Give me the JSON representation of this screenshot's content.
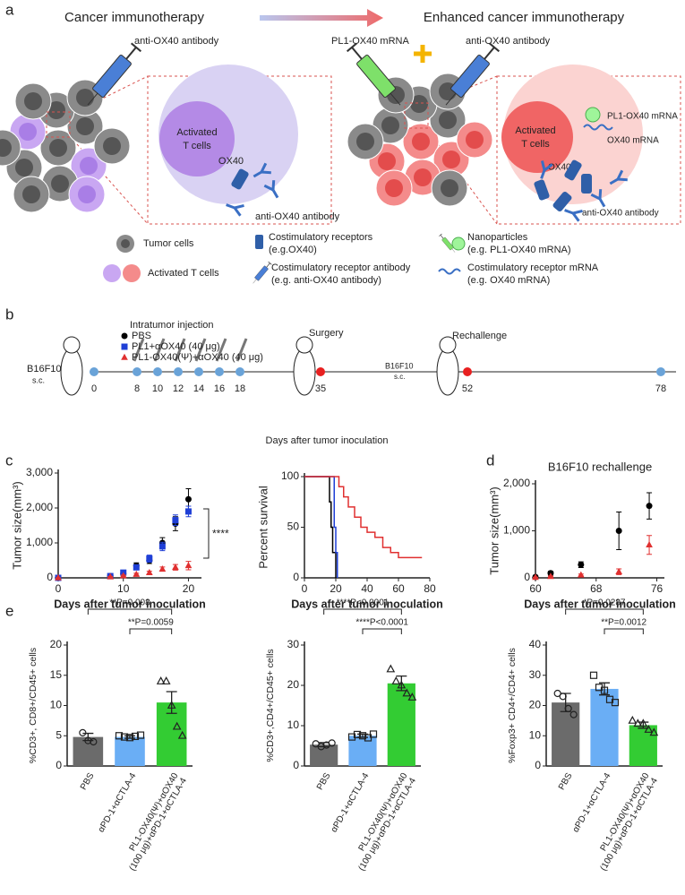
{
  "panel_labels": [
    "a",
    "b",
    "c",
    "d",
    "e"
  ],
  "diagram": {
    "left_title": "Cancer immunotherapy",
    "right_title": "Enhanced cancer immunotherapy",
    "left_syringe": "anti-OX40 antibody",
    "right_syringe_1": "PL1-OX40 mRNA",
    "right_syringe_2": "anti-OX40 antibody",
    "left_box": {
      "cell": [
        "Activated",
        "T cells"
      ],
      "receptor": "OX40",
      "antibody": "anti-OX40 antibody"
    },
    "right_box": {
      "cell": [
        "Activated",
        "T cells"
      ],
      "nanoparticle": "PL1-OX40 mRNA",
      "mrna": "OX40 mRNA",
      "receptor": "OX40",
      "antibody": "anti-OX40 antibody"
    },
    "legend": {
      "tumor": "Tumor cells",
      "tcell": "Activated T cells",
      "receptor": [
        "Costimulatory receptors",
        "(e.g.OX40)"
      ],
      "antibody": [
        "Costimulatory receptor antibody",
        "(e.g. anti-OX40 antibody)"
      ],
      "nanoparticle": [
        "Nanoparticles",
        "(e.g. PL1-OX40 mRNA)"
      ],
      "mrna": [
        "Costimulatory receptor mRNA",
        "(e.g. OX40 mRNA)"
      ]
    }
  },
  "timeline": {
    "heading": "Intratumor injection",
    "start": [
      "B16F10",
      "s.c."
    ],
    "days": [
      0,
      8,
      10,
      12,
      14,
      16,
      18,
      35,
      52,
      78
    ],
    "surgery": "Surgery",
    "rechallenge": "Rechallenge",
    "rechallenge_site": [
      "B16F10",
      "s.c."
    ],
    "xlabel": "Days after tumor inoculation"
  },
  "chart_data": [
    {
      "type": "scatter",
      "xlabel": "Days after tumor inoculation",
      "ylabel": "Tumor size(mm³)",
      "x": [
        0,
        8,
        10,
        12,
        14,
        16,
        18,
        20
      ],
      "series": [
        {
          "name": "PBS",
          "color": "#000000",
          "marker": "circle",
          "values": [
            0,
            50,
            120,
            350,
            500,
            1000,
            1550,
            2250
          ],
          "errors": [
            0,
            20,
            40,
            80,
            90,
            150,
            200,
            300
          ]
        },
        {
          "name": "PL1+αOX40 (40 μg)",
          "color": "#1f3fd6",
          "marker": "square",
          "values": [
            0,
            50,
            150,
            300,
            550,
            900,
            1650,
            1900
          ],
          "errors": [
            0,
            20,
            40,
            60,
            100,
            120,
            150,
            150
          ]
        },
        {
          "name": "PL1-OX40(Ψ)+αOX40 (40 μg)",
          "color": "#e03030",
          "marker": "triangle",
          "values": [
            0,
            30,
            60,
            100,
            150,
            250,
            300,
            350
          ],
          "errors": [
            0,
            10,
            20,
            30,
            40,
            60,
            80,
            120
          ]
        }
      ],
      "annotation": "****",
      "xlim": [
        0,
        22
      ],
      "xticks": [
        0,
        10,
        20
      ],
      "ylim": [
        0,
        3000
      ],
      "yticks": [
        0,
        {
          "value": 1000,
          "label": "1,000"
        },
        {
          "value": 2000,
          "label": "2,000"
        },
        {
          "value": 3000,
          "label": "3,000"
        }
      ]
    },
    {
      "type": "step",
      "xlabel": "Days after tumor inoculation",
      "ylabel": "Percent survival",
      "series": [
        {
          "color": "#000000",
          "x": [
            0,
            16,
            17,
            18,
            20
          ],
          "values": [
            100,
            75,
            50,
            25,
            0
          ]
        },
        {
          "color": "#1f3fd6",
          "x": [
            0,
            19,
            20,
            21
          ],
          "values": [
            100,
            50,
            25,
            0
          ]
        },
        {
          "color": "#e03030",
          "x": [
            0,
            22,
            25,
            28,
            32,
            36,
            40,
            45,
            50,
            55,
            60,
            75
          ],
          "values": [
            100,
            90,
            80,
            70,
            60,
            50,
            45,
            40,
            30,
            25,
            20,
            20
          ]
        }
      ],
      "xlim": [
        0,
        80
      ],
      "xticks": [
        0,
        20,
        40,
        60,
        80
      ],
      "ylim": [
        0,
        100
      ],
      "yticks": [
        0,
        50,
        100
      ]
    },
    {
      "type": "scatter",
      "title": "B16F10  rechallenge",
      "xlabel": "Days after tumor inoculation",
      "ylabel": "Tumor size(mm³)",
      "x": [
        60,
        62,
        66,
        71,
        75
      ],
      "series": [
        {
          "color": "#000000",
          "marker": "circle",
          "values": [
            20,
            100,
            280,
            1000,
            1530
          ],
          "errors": [
            10,
            40,
            60,
            400,
            280
          ]
        },
        {
          "color": "#e03030",
          "marker": "triangle",
          "values": [
            10,
            30,
            60,
            130,
            700
          ],
          "errors": [
            5,
            10,
            20,
            60,
            200
          ]
        }
      ],
      "xlim": [
        60,
        77
      ],
      "xticks": [
        60,
        68,
        76
      ],
      "ylim": [
        0,
        2000
      ],
      "yticks": [
        0,
        {
          "value": 1000,
          "label": "1,000"
        },
        {
          "value": 2000,
          "label": "2,000"
        }
      ]
    },
    {
      "type": "bar",
      "ylabel": "%CD3+, CD8+/CD45+ cells",
      "categories": [
        "PBS",
        "αPD-1+αCTLA-4",
        "PL1-OX40(Ψ)+αOX40 (100 μg)+αPD-1+αCTLA-4"
      ],
      "colors": [
        "#6b6b6b",
        "#6aaef5",
        "#33cc33"
      ],
      "point_markers": [
        "circle",
        "square",
        "triangle"
      ],
      "values": [
        4.8,
        4.8,
        10.5
      ],
      "errors": [
        0.6,
        0.2,
        1.8
      ],
      "points": [
        [
          5.5,
          4.2,
          4.0
        ],
        [
          5.0,
          4.8,
          4.7,
          4.9,
          5.1
        ],
        [
          14,
          14,
          10,
          6.5,
          5
        ]
      ],
      "annotations": [
        "**P=0.008",
        "**P=0.0059"
      ],
      "ylim": [
        0,
        20
      ],
      "yticks": [
        0,
        5,
        10,
        15,
        20
      ]
    },
    {
      "type": "bar",
      "ylabel": "%CD3+,CD4+/CD45+ cells",
      "categories": [
        "PBS",
        "αPD-1+αCTLA-4",
        "PL1-OX40(Ψ)+αOX40 (100 μg)+αPD-1+αCTLA-4"
      ],
      "colors": [
        "#6b6b6b",
        "#6aaef5",
        "#33cc33"
      ],
      "point_markers": [
        "circle",
        "square",
        "triangle"
      ],
      "values": [
        5.3,
        7.5,
        20.5
      ],
      "errors": [
        0.5,
        0.4,
        1.8
      ],
      "points": [
        [
          5.5,
          4.8,
          5.2,
          5.7
        ],
        [
          7.2,
          7.8,
          7.5,
          7.0,
          7.9
        ],
        [
          24,
          21,
          20,
          18,
          17
        ]
      ],
      "annotations": [
        "****P<0.0001",
        "****P<0.0001"
      ],
      "ylim": [
        0,
        30
      ],
      "yticks": [
        0,
        10,
        20,
        30
      ]
    },
    {
      "type": "bar",
      "ylabel": "%Foxp3+ CD4+/CD4+ cells",
      "categories": [
        "PBS",
        "αPD-1+αCTLA-4",
        "PL1-OX40(Ψ)+αOX40 (100 μg)+αPD-1+αCTLA-4"
      ],
      "colors": [
        "#6b6b6b",
        "#6aaef5",
        "#33cc33"
      ],
      "point_markers": [
        "circle",
        "square",
        "triangle"
      ],
      "values": [
        21,
        25.5,
        13.5
      ],
      "errors": [
        3,
        2,
        1
      ],
      "points": [
        [
          24,
          23,
          19,
          17
        ],
        [
          30,
          26,
          25,
          22,
          21
        ],
        [
          15,
          14,
          14,
          12,
          11
        ]
      ],
      "annotations": [
        "*P=0.0287",
        "**P=0.0012"
      ],
      "ylim": [
        0,
        40
      ],
      "yticks": [
        0,
        10,
        20,
        30,
        40
      ]
    }
  ]
}
